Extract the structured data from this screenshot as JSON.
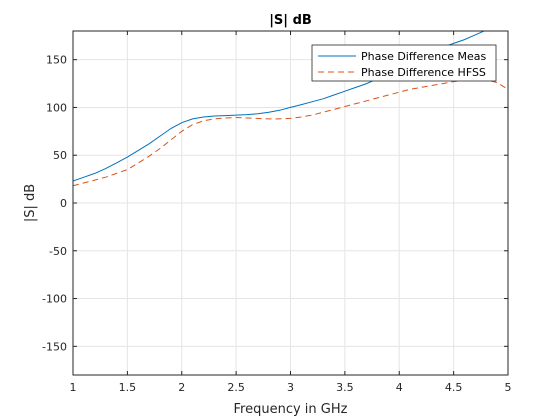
{
  "chart_data": {
    "type": "line",
    "title": "|S| dB",
    "xlabel": "Frequency in GHz",
    "ylabel": "|S| dB",
    "xlim": [
      1,
      5
    ],
    "ylim": [
      -180,
      180
    ],
    "xticks": [
      1,
      1.5,
      2,
      2.5,
      3,
      3.5,
      4,
      4.5,
      5
    ],
    "yticks": [
      -150,
      -100,
      -50,
      0,
      50,
      100,
      150
    ],
    "xtick_labels": [
      "1",
      "1.5",
      "2",
      "2.5",
      "3",
      "3.5",
      "4",
      "4.5",
      "5"
    ],
    "ytick_labels": [
      "-150",
      "-100",
      "-50",
      "0",
      "50",
      "100",
      "150"
    ],
    "grid": true,
    "legend_position": "top-right",
    "series": [
      {
        "name": "Phase Difference Meas",
        "color": "#0072BD",
        "style": "solid",
        "x": [
          1.0,
          1.1,
          1.2,
          1.3,
          1.4,
          1.5,
          1.6,
          1.7,
          1.8,
          1.9,
          2.0,
          2.1,
          2.2,
          2.3,
          2.4,
          2.5,
          2.6,
          2.7,
          2.8,
          2.9,
          3.0,
          3.1,
          3.2,
          3.3,
          3.4,
          3.5,
          3.6,
          3.7,
          3.8,
          3.9,
          4.0,
          4.1,
          4.2,
          4.3,
          4.4,
          4.5,
          4.6,
          4.7,
          4.8
        ],
        "y": [
          23,
          27,
          31,
          36,
          42,
          48,
          55,
          62,
          70,
          78,
          84,
          88,
          90,
          91,
          91.5,
          92,
          92.5,
          93.5,
          95,
          97,
          100,
          103,
          106,
          109,
          113,
          117,
          121,
          125,
          130,
          135,
          140,
          146,
          151,
          157,
          163,
          167,
          171,
          176,
          181
        ]
      },
      {
        "name": "Phase Difference HFSS",
        "color": "#D95319",
        "style": "dashed",
        "x": [
          1.0,
          1.1,
          1.2,
          1.3,
          1.4,
          1.5,
          1.6,
          1.7,
          1.8,
          1.9,
          2.0,
          2.1,
          2.2,
          2.3,
          2.4,
          2.5,
          2.6,
          2.7,
          2.8,
          2.9,
          3.0,
          3.1,
          3.2,
          3.3,
          3.4,
          3.5,
          3.6,
          3.7,
          3.8,
          3.9,
          4.0,
          4.1,
          4.2,
          4.3,
          4.4,
          4.5,
          4.6,
          4.7,
          4.8,
          4.9,
          5.0
        ],
        "y": [
          18,
          21,
          24,
          27,
          31,
          35,
          42,
          49,
          57,
          66,
          75,
          82,
          86,
          88,
          89,
          89.5,
          89,
          88.5,
          88,
          88,
          88.5,
          90,
          92,
          95,
          98,
          101,
          104,
          107,
          110,
          113,
          116,
          119,
          121,
          123,
          125,
          127,
          128.5,
          129.5,
          129,
          126,
          119
        ]
      }
    ]
  }
}
